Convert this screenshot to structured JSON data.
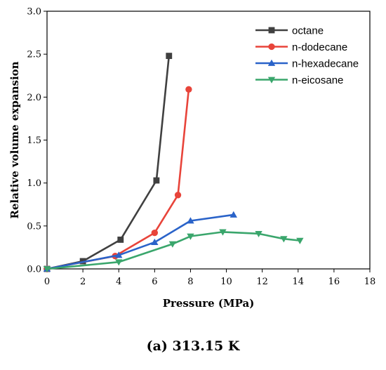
{
  "caption": "(a) 313.15 K",
  "chart_data": {
    "type": "line",
    "xlabel": "Pressure (MPa)",
    "ylabel": "Relative volume expansion",
    "xlim": [
      0,
      18
    ],
    "ylim": [
      0,
      3.0
    ],
    "xticks": [
      "0",
      "2",
      "4",
      "6",
      "8",
      "10",
      "12",
      "14",
      "16",
      "18"
    ],
    "yticks": [
      "0.0",
      "0.5",
      "1.0",
      "1.5",
      "2.0",
      "2.5",
      "3.0"
    ],
    "legend_position": "top-right",
    "grid": false,
    "series": [
      {
        "name": "octane",
        "color": "#404040",
        "marker": "square",
        "x": [
          0.0,
          2.0,
          4.1,
          6.1,
          6.8
        ],
        "y": [
          0.0,
          0.09,
          0.34,
          1.03,
          2.48
        ]
      },
      {
        "name": "n-dodecane",
        "color": "#e8443a",
        "marker": "circle",
        "x": [
          0.0,
          3.8,
          6.0,
          7.3,
          7.9
        ],
        "y": [
          0.0,
          0.15,
          0.42,
          0.86,
          2.09
        ]
      },
      {
        "name": "n-hexadecane",
        "color": "#2a63c9",
        "marker": "triangle-up",
        "x": [
          0.0,
          4.0,
          6.0,
          8.0,
          10.4
        ],
        "y": [
          0.0,
          0.16,
          0.31,
          0.56,
          0.63
        ]
      },
      {
        "name": "n-eicosane",
        "color": "#3aa66c",
        "marker": "triangle-down",
        "x": [
          0.0,
          4.0,
          7.0,
          8.0,
          9.8,
          11.8,
          13.2,
          14.1
        ],
        "y": [
          0.0,
          0.08,
          0.29,
          0.38,
          0.43,
          0.41,
          0.35,
          0.33
        ]
      }
    ]
  }
}
